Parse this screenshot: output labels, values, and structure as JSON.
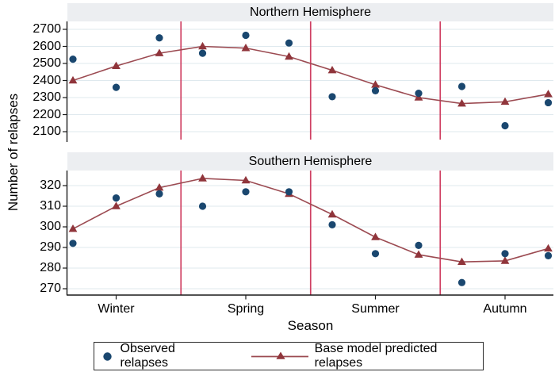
{
  "figure": {
    "ylabel": "Number of relapses",
    "xlabel": "Season",
    "legend": {
      "observed_label": "Observed relapses",
      "predicted_label": "Base model predicted relapses"
    }
  },
  "chart_data": {
    "type": "scatter",
    "x_description": "12 monthly points, 3 per season",
    "categories": [
      "Winter",
      "Spring",
      "Summer",
      "Autumn"
    ],
    "season_separators": "red vertical lines between seasons",
    "legend_position": "bottom",
    "grid": true,
    "panels": [
      {
        "title": "Northern Hemisphere",
        "yticks": [
          2100,
          2200,
          2300,
          2400,
          2500,
          2600,
          2700
        ],
        "ylim": [
          2020,
          2745
        ],
        "series": [
          {
            "name": "Observed relapses",
            "type": "scatter",
            "values": [
              2525,
              2360,
              2650,
              2560,
              2665,
              2620,
              2305,
              2340,
              2325,
              2365,
              2135,
              2270
            ]
          },
          {
            "name": "Base model predicted relapses",
            "type": "line+triangle",
            "values": [
              2400,
              2485,
              2560,
              2600,
              2590,
              2540,
              2460,
              2375,
              2300,
              2265,
              2275,
              2320
            ]
          }
        ]
      },
      {
        "title": "Southern Hemisphere",
        "yticks": [
          270,
          280,
          290,
          300,
          310,
          320
        ],
        "ylim": [
          266,
          327
        ],
        "series": [
          {
            "name": "Observed relapses",
            "type": "scatter",
            "values": [
              292,
              314,
              316,
              310,
              317,
              317,
              301,
              287,
              291,
              273,
              287,
              286
            ]
          },
          {
            "name": "Base model predicted relapses",
            "type": "line+triangle",
            "values": [
              299,
              310,
              319,
              323.5,
              322.5,
              316,
              306,
              295,
              286.5,
              283,
              283.5,
              289.5
            ]
          }
        ]
      }
    ],
    "colors": {
      "observed": "#1a476f",
      "predicted_marker": "#90353b",
      "predicted_line": "#9c4b52",
      "separator": "#cf3f62",
      "grid": "#dfe9ee",
      "header_band": "#eceef1",
      "axis": "#1a1a1a"
    }
  }
}
